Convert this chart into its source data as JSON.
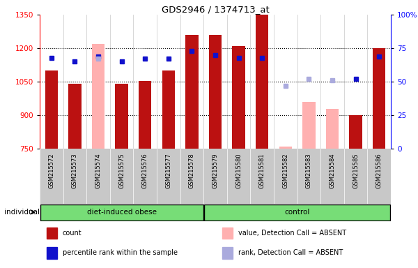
{
  "title": "GDS2946 / 1374713_at",
  "samples": [
    "GSM215572",
    "GSM215573",
    "GSM215574",
    "GSM215575",
    "GSM215576",
    "GSM215577",
    "GSM215578",
    "GSM215579",
    "GSM215580",
    "GSM215581",
    "GSM215582",
    "GSM215583",
    "GSM215584",
    "GSM215585",
    "GSM215586"
  ],
  "groups": [
    "diet-induced obese",
    "diet-induced obese",
    "diet-induced obese",
    "diet-induced obese",
    "diet-induced obese",
    "diet-induced obese",
    "diet-induced obese",
    "control",
    "control",
    "control",
    "control",
    "control",
    "control",
    "control",
    "control"
  ],
  "count_values": [
    1100,
    1040,
    null,
    1040,
    1055,
    1100,
    1260,
    1260,
    1210,
    1350,
    null,
    null,
    null,
    900,
    1200
  ],
  "absent_bar_values": [
    null,
    null,
    1220,
    null,
    null,
    null,
    null,
    null,
    null,
    null,
    760,
    960,
    930,
    null,
    null
  ],
  "percentile_values": [
    68,
    65,
    69,
    65,
    67,
    67,
    73,
    70,
    68,
    68,
    null,
    null,
    null,
    52,
    69
  ],
  "absent_rank_values": [
    null,
    null,
    67,
    null,
    null,
    null,
    null,
    null,
    null,
    null,
    47,
    52,
    51,
    null,
    null
  ],
  "ylim_left": [
    750,
    1350
  ],
  "ylim_right": [
    0,
    100
  ],
  "yticks_left": [
    750,
    900,
    1050,
    1200,
    1350
  ],
  "yticks_right": [
    0,
    25,
    50,
    75,
    100
  ],
  "bar_color_present": "#bb1111",
  "bar_color_absent": "#ffb0b0",
  "dot_color_present": "#1111cc",
  "dot_color_absent": "#aaaadd",
  "legend_items": [
    {
      "label": "count",
      "color": "#bb1111"
    },
    {
      "label": "percentile rank within the sample",
      "color": "#1111cc"
    },
    {
      "label": "value, Detection Call = ABSENT",
      "color": "#ffb0b0"
    },
    {
      "label": "rank, Detection Call = ABSENT",
      "color": "#aaaadd"
    }
  ],
  "individual_label": "individual",
  "ticklabel_bg": "#c8c8c8",
  "group_bg": "#77dd77",
  "plot_bg": "#ffffff"
}
